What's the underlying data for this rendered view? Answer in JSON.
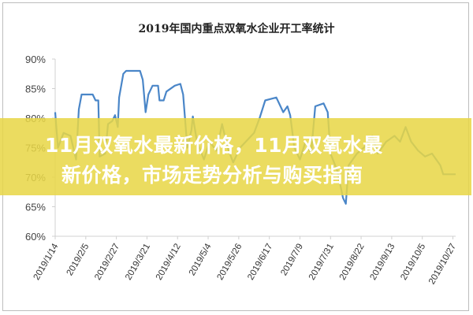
{
  "chart_data": {
    "type": "line",
    "title": "2019年国内重点双氧水企业开工率统计",
    "xlabel": "",
    "ylabel": "",
    "ylim": [
      60,
      90
    ],
    "yticks": [
      "60%",
      "65%",
      "70%",
      "75%",
      "80%",
      "85%",
      "90%"
    ],
    "xticks": [
      "2019/1/14",
      "2019/2/5",
      "2019/2/27",
      "2019/3/21",
      "2019/4/12",
      "2019/5/4",
      "2019/5/26",
      "2019/6/17",
      "2019/7/9",
      "2019/7/31",
      "2019/8/22",
      "2019/9/13",
      "2019/10/5",
      "2019/10/27"
    ],
    "grid": false,
    "line_color": "#4a86c8",
    "series": [
      {
        "x": [
          "2019-01-14",
          "2019-01-16",
          "2019-01-20",
          "2019-01-25",
          "2019-01-29",
          "2019-01-31",
          "2019-02-02",
          "2019-02-10",
          "2019-02-12",
          "2019-02-14",
          "2019-02-15",
          "2019-02-19",
          "2019-02-21",
          "2019-02-24",
          "2019-02-26",
          "2019-02-28",
          "2019-03-01",
          "2019-03-04",
          "2019-03-06",
          "2019-03-16",
          "2019-03-18",
          "2019-03-20",
          "2019-03-22",
          "2019-03-25",
          "2019-03-29",
          "2019-03-30",
          "2019-04-02",
          "2019-04-04",
          "2019-04-10",
          "2019-04-14",
          "2019-04-16",
          "2019-04-19",
          "2019-04-22",
          "2019-04-23",
          "2019-04-26",
          "2019-05-01",
          "2019-05-05",
          "2019-05-10",
          "2019-05-14",
          "2019-05-18",
          "2019-05-22",
          "2019-05-27",
          "2019-06-02",
          "2019-06-06",
          "2019-06-10",
          "2019-06-14",
          "2019-06-22",
          "2019-06-25",
          "2019-06-27",
          "2019-06-30",
          "2019-07-02",
          "2019-07-05",
          "2019-07-09",
          "2019-07-13",
          "2019-07-17",
          "2019-07-20",
          "2019-07-26",
          "2019-07-29",
          "2019-07-31",
          "2019-08-05",
          "2019-08-09",
          "2019-08-11",
          "2019-08-13",
          "2019-08-19",
          "2019-08-24",
          "2019-08-30",
          "2019-09-03",
          "2019-09-09",
          "2019-09-15",
          "2019-09-19",
          "2019-09-23",
          "2019-09-27",
          "2019-10-02",
          "2019-10-07",
          "2019-10-12",
          "2019-10-15",
          "2019-10-18",
          "2019-10-20",
          "2019-10-29"
        ],
        "values": [
          81,
          75,
          77.5,
          77,
          73,
          81.5,
          84,
          84,
          83,
          83,
          73.5,
          74,
          79,
          79.5,
          80.5,
          78.5,
          83.5,
          87.5,
          88,
          88,
          86.5,
          81,
          84,
          85.5,
          85.5,
          83,
          83,
          84.5,
          85.5,
          85.8,
          84,
          75,
          78,
          80.3,
          76,
          73,
          76,
          74.5,
          79,
          75,
          72.5,
          75,
          76.5,
          77.5,
          80,
          83,
          83.5,
          82,
          81,
          82,
          80.5,
          75,
          73,
          76,
          74,
          82,
          82.5,
          81,
          74,
          71,
          66.5,
          65.5,
          72,
          74,
          75,
          77,
          74,
          76,
          77,
          76,
          78.5,
          76,
          74.5,
          73.5,
          74,
          73,
          72,
          70.5,
          70.5
        ]
      }
    ]
  },
  "banner": {
    "line1": "11月双氧水最新价格，11月双氧水最",
    "line2": "新价格，市场走势分析与购买指南",
    "color": "#e8d646"
  }
}
